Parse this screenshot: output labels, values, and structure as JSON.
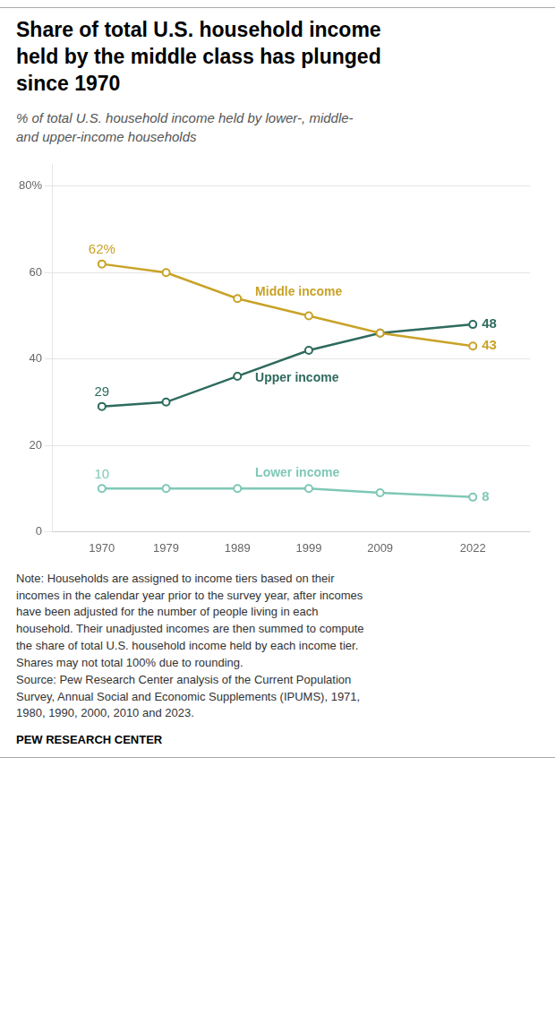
{
  "chart_data": {
    "type": "line",
    "title": "Share of total U.S. household income\nheld by the middle class has plunged\nsince 1970",
    "subtitle": "% of total U.S. household income held by lower-, middle-\nand upper-income households",
    "x": [
      1970,
      1979,
      1989,
      1999,
      2009,
      2022
    ],
    "series": [
      {
        "name": "Middle income",
        "color": "#C9A227",
        "marker": "circle",
        "values": [
          62,
          60,
          54,
          50,
          46,
          43
        ],
        "value_labels": [
          "62%",
          null,
          null,
          null,
          null,
          "43"
        ]
      },
      {
        "name": "Upper income",
        "color": "#2E6B5E",
        "marker": "circle",
        "values": [
          29,
          30,
          36,
          42,
          46,
          48
        ],
        "value_labels": [
          "29",
          null,
          null,
          null,
          null,
          "48"
        ]
      },
      {
        "name": "Lower income",
        "color": "#7FC8B6",
        "marker": "circle",
        "values": [
          10,
          10,
          10,
          10,
          9,
          8
        ],
        "value_labels": [
          "10",
          null,
          null,
          null,
          null,
          "8"
        ]
      }
    ],
    "xlim": [
      1963,
      2030
    ],
    "xticks": [
      1970,
      1979,
      1989,
      1999,
      2009,
      2022
    ],
    "ylim": [
      0,
      85
    ],
    "yticks": [
      0,
      20,
      40,
      60,
      {
        "value": 80,
        "label": "80%"
      }
    ],
    "grid": true,
    "legend": false,
    "data_labels": true,
    "note": "Note: Households are assigned to income tiers based on their\nincomes in the calendar year prior to the survey year, after incomes\nhave been adjusted for the number of people living in each\nhousehold. Their unadjusted incomes are then summed to compute\nthe share of total U.S. household income held by each income tier.\nShares may not total 100% due to rounding.\nSource: Pew Research Center analysis of the Current Population\nSurvey, Annual Social and Economic Supplements (IPUMS), 1971,\n1980, 1990, 2000, 2010 and 2023.",
    "footer": "PEW RESEARCH CENTER"
  }
}
